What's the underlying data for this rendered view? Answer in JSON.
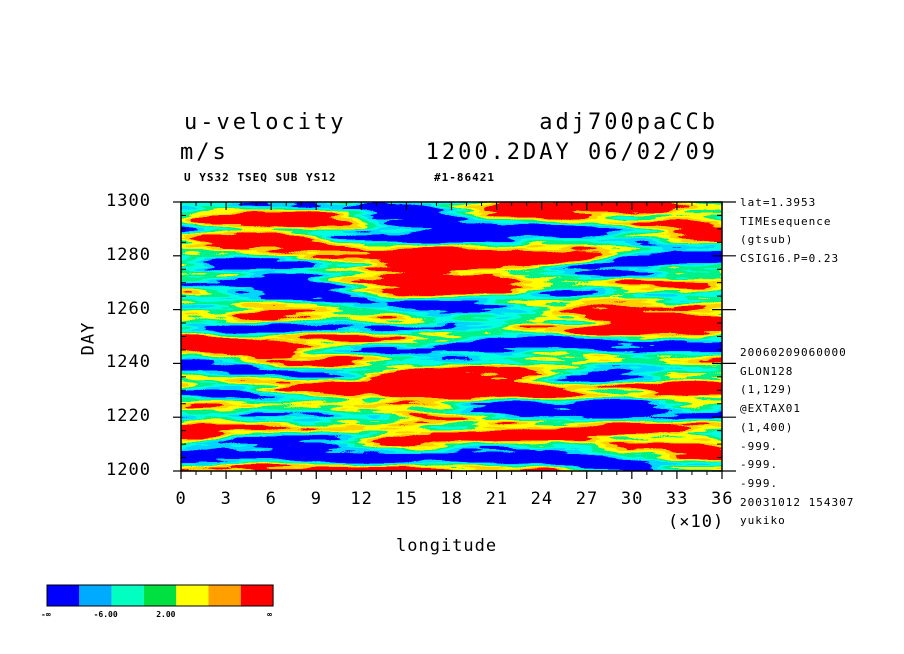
{
  "header": {
    "title_left": "u-velocity",
    "title_right": "adj700paCCb",
    "units": "m/s",
    "time_label": "1200.2DAY 06/02/09",
    "subline_left": "U YS32 TSEQ SUB YS12",
    "subline_right": "#1-86421"
  },
  "side_info": {
    "top": [
      "lat=1.3953",
      "TIMEsequence",
      "(gtsub)",
      "CSIG16.P=0.23"
    ],
    "bottom": [
      "20060209060000",
      "GLON128",
      "(1,129)",
      "@EXTAX01",
      "(1,400)",
      "-999.",
      "-999.",
      "-999.",
      "20031012 154307",
      "yukiko"
    ]
  },
  "chart_data": {
    "type": "heatmap",
    "title": "u-velocity",
    "xlabel": "longitude",
    "ylabel": "DAY",
    "x_multiplier_label": "(×10)",
    "xlim": [
      0,
      36
    ],
    "ylim": [
      1200,
      1300
    ],
    "x_ticks": [
      "0",
      "3",
      "6",
      "9",
      "12",
      "15",
      "18",
      "21",
      "24",
      "27",
      "30",
      "33",
      "36"
    ],
    "y_ticks": [
      "1200",
      "1220",
      "1240",
      "1260",
      "1280",
      "1300"
    ],
    "colors": [
      "#0000ff",
      "#00aaff",
      "#00ffc0",
      "#00e040",
      "#ffff00",
      "#ffa000",
      "#ff0000"
    ],
    "colorbar_labels": [
      "-∞",
      "-6.00",
      "2.00",
      "∞"
    ]
  }
}
